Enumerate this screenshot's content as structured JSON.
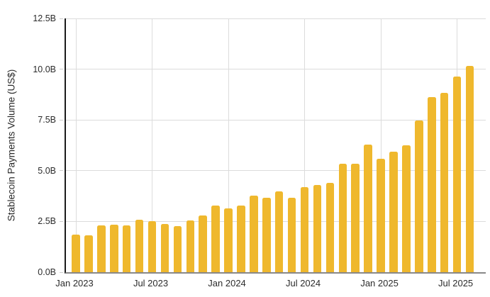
{
  "chart_data": {
    "type": "bar",
    "title": "",
    "xlabel": "",
    "ylabel": "Stablecoin Payments Volume (US$)",
    "bar_color": "#EFB82D",
    "grid": true,
    "legend_position": "none",
    "ylim": [
      0,
      12.5
    ],
    "y_ticks": [
      {
        "value": 0,
        "label": "0.0B"
      },
      {
        "value": 2.5,
        "label": "2.5B"
      },
      {
        "value": 5,
        "label": "5.0B"
      },
      {
        "value": 7.5,
        "label": "7.5B"
      },
      {
        "value": 10,
        "label": "10.0B"
      },
      {
        "value": 12.5,
        "label": "12.5B"
      }
    ],
    "x_ticks": [
      {
        "month_index": 0,
        "label": "Jan 2023"
      },
      {
        "month_index": 6,
        "label": "Jul 2023"
      },
      {
        "month_index": 12,
        "label": "Jan 2024"
      },
      {
        "month_index": 18,
        "label": "Jul 2024"
      },
      {
        "month_index": 24,
        "label": "Jan 2025"
      },
      {
        "month_index": 30,
        "label": "Jul 2025"
      }
    ],
    "categories": [
      "Jan 2023",
      "Feb 2023",
      "Mar 2023",
      "Apr 2023",
      "May 2023",
      "Jun 2023",
      "Jul 2023",
      "Aug 2023",
      "Sep 2023",
      "Oct 2023",
      "Nov 2023",
      "Dec 2023",
      "Jan 2024",
      "Feb 2024",
      "Mar 2024",
      "Apr 2024",
      "May 2024",
      "Jun 2024",
      "Jul 2024",
      "Aug 2024",
      "Sep 2024",
      "Oct 2024",
      "Nov 2024",
      "Dec 2024",
      "Jan 2025",
      "Feb 2025",
      "Mar 2025",
      "Apr 2025",
      "May 2025",
      "Jun 2025",
      "Jul 2025",
      "Aug 2025"
    ],
    "values": [
      1.85,
      1.82,
      2.3,
      2.33,
      2.31,
      2.6,
      2.51,
      2.37,
      2.26,
      2.55,
      2.79,
      3.3,
      3.14,
      3.28,
      3.76,
      3.66,
      3.97,
      3.65,
      4.18,
      4.29,
      4.4,
      5.33,
      5.35,
      6.27,
      5.57,
      5.95,
      6.24,
      7.49,
      8.64,
      8.85,
      9.65,
      10.17
    ]
  }
}
